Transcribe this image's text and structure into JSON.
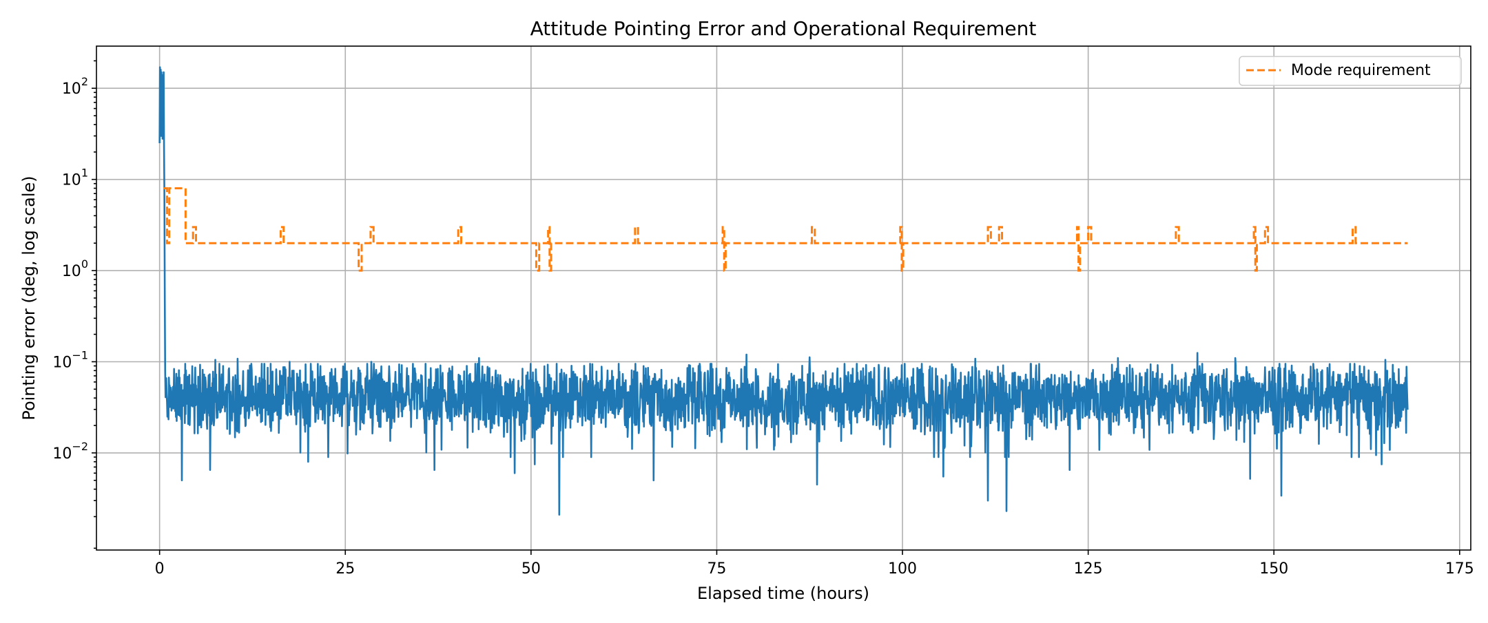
{
  "chart_data": {
    "type": "line",
    "title": "Attitude Pointing Error and Operational Requirement",
    "xlabel": "Elapsed time (hours)",
    "ylabel": "Pointing error (deg, log scale)",
    "xlim": [
      -8.5,
      176.5
    ],
    "ylim": [
      0.00086,
      290
    ],
    "yscale": "log",
    "grid": true,
    "legend_position": "upper right",
    "x_ticks": [
      0,
      25,
      50,
      75,
      100,
      125,
      150,
      175
    ],
    "x_tick_labels": [
      "0",
      "25",
      "50",
      "75",
      "100",
      "125",
      "150",
      "175"
    ],
    "y_ticks": [
      0.01,
      0.1,
      1,
      10,
      100
    ],
    "y_tick_base": "10",
    "y_tick_exponents": [
      "−2",
      "−1",
      "0",
      "1",
      "2"
    ],
    "series": [
      {
        "key": "pointing_error",
        "color": "#1f77b4",
        "style": "solid",
        "x_start": 0,
        "x_end": 168,
        "initial_transient": [
          [
            0,
            25
          ],
          [
            0.05,
            170
          ],
          [
            0.1,
            40
          ],
          [
            0.15,
            160
          ],
          [
            0.2,
            30
          ],
          [
            0.25,
            150
          ],
          [
            0.3,
            55
          ],
          [
            0.35,
            140
          ],
          [
            0.4,
            28
          ],
          [
            0.45,
            120
          ],
          [
            0.5,
            60
          ],
          [
            0.55,
            150
          ],
          [
            0.6,
            22
          ],
          [
            0.65,
            6
          ],
          [
            0.7,
            0.5
          ],
          [
            0.75,
            0.08
          ]
        ],
        "steady_state_typical": 0.04,
        "steady_state_dips": [
          [
            3.0,
            0.005
          ],
          [
            6.8,
            0.0065
          ],
          [
            20.0,
            0.008
          ],
          [
            37.0,
            0.0065
          ],
          [
            47.8,
            0.006
          ],
          [
            50.5,
            0.0075
          ],
          [
            53.8,
            0.0021
          ],
          [
            66.5,
            0.005
          ],
          [
            88.5,
            0.0045
          ],
          [
            105.5,
            0.0055
          ],
          [
            111.5,
            0.003
          ],
          [
            114.0,
            0.0023
          ],
          [
            122.5,
            0.0065
          ],
          [
            146.8,
            0.0052
          ],
          [
            151.0,
            0.0034
          ],
          [
            164.5,
            0.0075
          ]
        ],
        "steady_state_peaks": [
          [
            7.5,
            0.105
          ],
          [
            10.5,
            0.108
          ],
          [
            17.5,
            0.1
          ],
          [
            28.5,
            0.1
          ],
          [
            43.0,
            0.11
          ],
          [
            79.0,
            0.12
          ],
          [
            87.5,
            0.112
          ],
          [
            109.8,
            0.108
          ],
          [
            129.0,
            0.11
          ],
          [
            139.7,
            0.125
          ],
          [
            144.8,
            0.11
          ],
          [
            165.0,
            0.105
          ]
        ]
      },
      {
        "name": "Mode requirement",
        "key": "mode_requirement",
        "color": "#ff7f0e",
        "style": "dashed",
        "points": [
          [
            0.5,
            8
          ],
          [
            0.5,
            8
          ],
          [
            1.0,
            8
          ],
          [
            1.0,
            2
          ],
          [
            1.3,
            2
          ],
          [
            1.3,
            8
          ],
          [
            3.5,
            8
          ],
          [
            3.5,
            2
          ],
          [
            4.5,
            2
          ],
          [
            4.5,
            3
          ],
          [
            4.9,
            3
          ],
          [
            4.9,
            2
          ],
          [
            16.3,
            2
          ],
          [
            16.3,
            3
          ],
          [
            16.7,
            3
          ],
          [
            16.7,
            2
          ],
          [
            26.8,
            2
          ],
          [
            26.8,
            1
          ],
          [
            27.2,
            1
          ],
          [
            27.2,
            2
          ],
          [
            28.4,
            2
          ],
          [
            28.4,
            3
          ],
          [
            28.8,
            3
          ],
          [
            28.8,
            2
          ],
          [
            40.2,
            2
          ],
          [
            40.2,
            3
          ],
          [
            40.6,
            3
          ],
          [
            40.6,
            2
          ],
          [
            50.7,
            2
          ],
          [
            50.7,
            1
          ],
          [
            51.1,
            1
          ],
          [
            51.1,
            2
          ],
          [
            52.3,
            2
          ],
          [
            52.3,
            3
          ],
          [
            52.5,
            3
          ],
          [
            52.5,
            1
          ],
          [
            52.7,
            1
          ],
          [
            52.7,
            2
          ],
          [
            64.0,
            2
          ],
          [
            64.0,
            3
          ],
          [
            64.4,
            3
          ],
          [
            64.4,
            2
          ],
          [
            75.8,
            2
          ],
          [
            75.8,
            3
          ],
          [
            76.0,
            3
          ],
          [
            76.0,
            1
          ],
          [
            76.2,
            1
          ],
          [
            76.2,
            2
          ],
          [
            87.8,
            2
          ],
          [
            87.8,
            3
          ],
          [
            88.2,
            3
          ],
          [
            88.2,
            2
          ],
          [
            99.7,
            2
          ],
          [
            99.7,
            3
          ],
          [
            99.9,
            3
          ],
          [
            99.9,
            1
          ],
          [
            100.1,
            1
          ],
          [
            100.1,
            2
          ],
          [
            111.5,
            2
          ],
          [
            111.5,
            3
          ],
          [
            111.9,
            3
          ],
          [
            111.9,
            2
          ],
          [
            113.0,
            2
          ],
          [
            113.0,
            3
          ],
          [
            113.4,
            3
          ],
          [
            113.4,
            2
          ],
          [
            123.5,
            2
          ],
          [
            123.5,
            3
          ],
          [
            123.7,
            3
          ],
          [
            123.7,
            1
          ],
          [
            123.9,
            1
          ],
          [
            123.9,
            2
          ],
          [
            125.0,
            2
          ],
          [
            125.0,
            3
          ],
          [
            125.4,
            3
          ],
          [
            125.4,
            2
          ],
          [
            136.8,
            2
          ],
          [
            136.8,
            3
          ],
          [
            137.2,
            3
          ],
          [
            137.2,
            2
          ],
          [
            147.3,
            2
          ],
          [
            147.3,
            3
          ],
          [
            147.5,
            3
          ],
          [
            147.5,
            1
          ],
          [
            147.7,
            1
          ],
          [
            147.7,
            2
          ],
          [
            148.8,
            2
          ],
          [
            148.8,
            3
          ],
          [
            149.2,
            3
          ],
          [
            149.2,
            2
          ],
          [
            160.6,
            2
          ],
          [
            160.6,
            3
          ],
          [
            161.0,
            3
          ],
          [
            161.0,
            2
          ],
          [
            168.0,
            2
          ]
        ]
      }
    ]
  }
}
